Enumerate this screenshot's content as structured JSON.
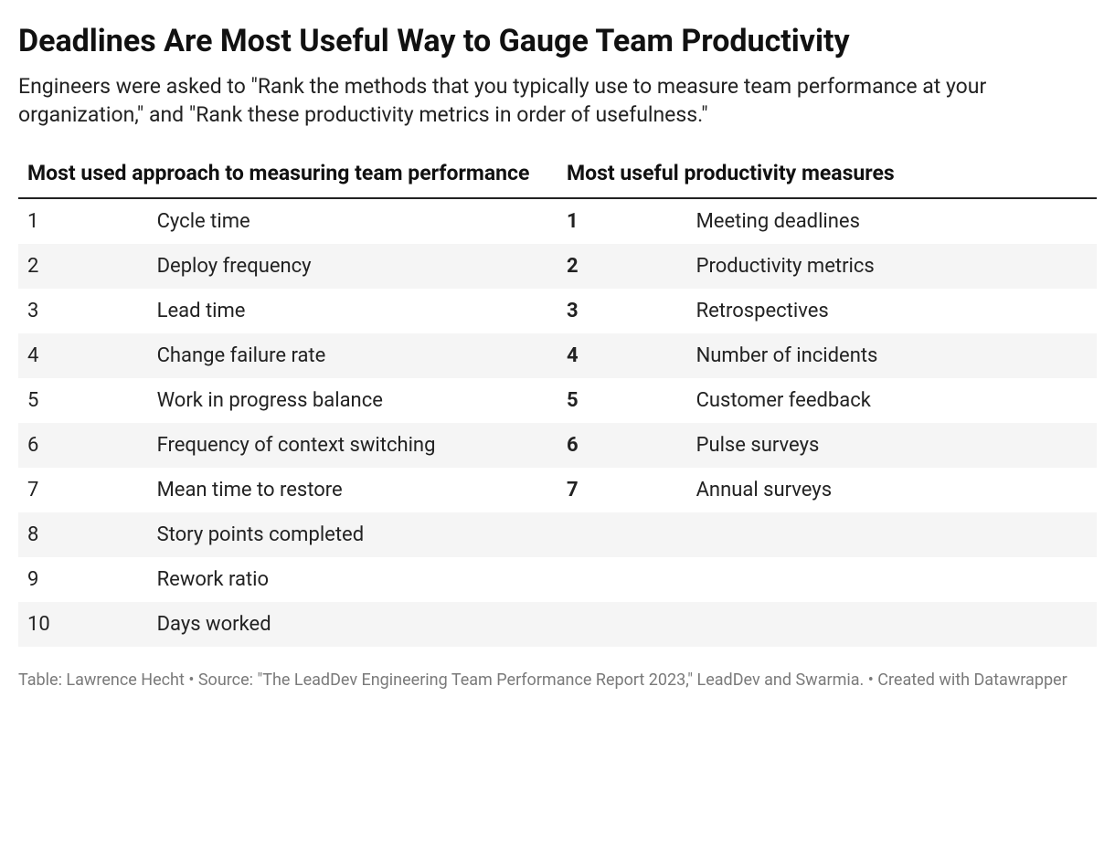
{
  "title": "Deadlines Are Most Useful Way to Gauge Team Productivity",
  "subtitle": "Engineers were asked to \"Rank the methods that you typically use to measure team performance at your organization,\" and \"Rank these productivity metrics in order of usefulness.\"",
  "table": {
    "type": "table",
    "background_color": "#ffffff",
    "stripe_color": "#f5f5f5",
    "header_border_color": "#222222",
    "text_color": "#222222",
    "header_fontsize": 23,
    "body_fontsize": 22,
    "columns": {
      "left_header": "Most used approach to measuring team performance",
      "right_header": "Most useful productivity measures"
    },
    "rows": [
      {
        "rank1": "1",
        "label1": "Cycle time",
        "rank2": "1",
        "label2": "Meeting deadlines"
      },
      {
        "rank1": "2",
        "label1": "Deploy frequency",
        "rank2": "2",
        "label2": "Productivity metrics"
      },
      {
        "rank1": "3",
        "label1": "Lead time",
        "rank2": "3",
        "label2": "Retrospectives"
      },
      {
        "rank1": "4",
        "label1": "Change failure rate",
        "rank2": "4",
        "label2": "Number of incidents"
      },
      {
        "rank1": "5",
        "label1": "Work in progress balance",
        "rank2": "5",
        "label2": "Customer feedback"
      },
      {
        "rank1": "6",
        "label1": "Frequency of context switching",
        "rank2": "6",
        "label2": "Pulse surveys"
      },
      {
        "rank1": "7",
        "label1": "Mean time to restore",
        "rank2": "7",
        "label2": "Annual surveys"
      },
      {
        "rank1": "8",
        "label1": "Story points completed",
        "rank2": "",
        "label2": ""
      },
      {
        "rank1": "9",
        "label1": "Rework ratio",
        "rank2": "",
        "label2": ""
      },
      {
        "rank1": "10",
        "label1": "Days worked",
        "rank2": "",
        "label2": ""
      }
    ]
  },
  "footer": "Table: Lawrence Hecht • Source: \"The LeadDev Engineering Team Performance Report 2023,\" LeadDev and Swarmia. • Created with Datawrapper",
  "footer_color": "#7a7a7a",
  "footer_fontsize": 18
}
